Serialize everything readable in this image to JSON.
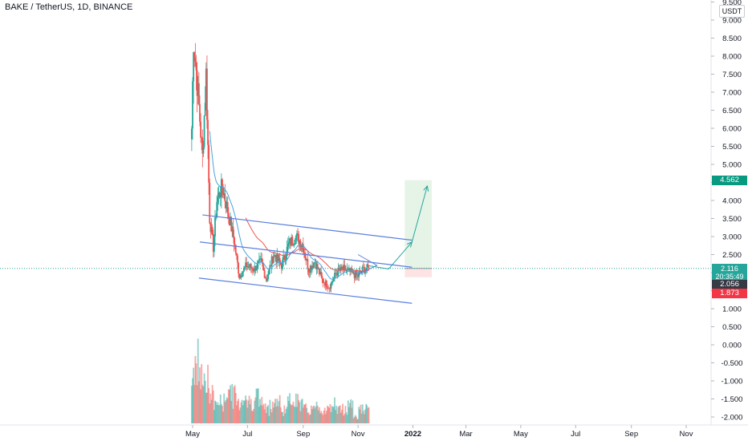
{
  "header": {
    "symbol_title": "BAKE / TetherUS, 1D, BINANCE",
    "currency": "USDT"
  },
  "badges": {
    "target": "4.562",
    "last_price": "2.116",
    "countdown": "20:35:49",
    "prev_close": "2.056",
    "stop": "1.873"
  },
  "colors": {
    "up": "#26a69a",
    "down": "#ef5350",
    "trendline": "#5b7fe0",
    "ema_fast": "#4aa3df",
    "ema_slow": "#ef5350",
    "target_zone": "#e6f4e8",
    "stop_zone": "#fde3e3",
    "last_price_line": "#26a69a"
  },
  "chart_data": {
    "type": "candlestick",
    "y_axis": {
      "ticks": [
        "9.500",
        "9.000",
        "8.500",
        "8.000",
        "7.500",
        "7.000",
        "6.500",
        "6.000",
        "5.500",
        "5.000",
        "4.500",
        "4.000",
        "3.500",
        "3.000",
        "2.500",
        "2.000",
        "1.500",
        "1.000",
        "0.500",
        "0.000",
        "-0.500",
        "-1.000",
        "-1.500",
        "-2.000"
      ],
      "range": [
        -2.2,
        9.6
      ]
    },
    "x_axis": {
      "ticks": [
        "May",
        "Jul",
        "Sep",
        "Nov",
        "2022",
        "Mar",
        "May",
        "Jul",
        "Sep",
        "Nov"
      ],
      "range": [
        "2021-04-23",
        "2022-12-10"
      ]
    },
    "price_series": [
      {
        "date": "2021-04-30",
        "close": 6.0
      },
      {
        "date": "2021-05-02",
        "close": 8.5
      },
      {
        "date": "2021-05-05",
        "close": 7.6
      },
      {
        "date": "2021-05-08",
        "close": 6.6
      },
      {
        "date": "2021-05-12",
        "close": 5.2
      },
      {
        "date": "2021-05-16",
        "close": 7.5
      },
      {
        "date": "2021-05-20",
        "close": 3.5
      },
      {
        "date": "2021-05-24",
        "close": 2.7
      },
      {
        "date": "2021-05-28",
        "close": 4.0
      },
      {
        "date": "2021-06-03",
        "close": 4.4
      },
      {
        "date": "2021-06-10",
        "close": 3.6
      },
      {
        "date": "2021-06-16",
        "close": 2.9
      },
      {
        "date": "2021-06-22",
        "close": 1.9
      },
      {
        "date": "2021-06-30",
        "close": 2.2
      },
      {
        "date": "2021-07-08",
        "close": 2.1
      },
      {
        "date": "2021-07-16",
        "close": 2.3
      },
      {
        "date": "2021-07-22",
        "close": 1.8
      },
      {
        "date": "2021-07-30",
        "close": 2.5
      },
      {
        "date": "2021-08-08",
        "close": 2.2
      },
      {
        "date": "2021-08-16",
        "close": 2.8
      },
      {
        "date": "2021-08-24",
        "close": 3.0
      },
      {
        "date": "2021-08-31",
        "close": 2.8
      },
      {
        "date": "2021-09-07",
        "close": 2.1
      },
      {
        "date": "2021-09-14",
        "close": 2.3
      },
      {
        "date": "2021-09-22",
        "close": 1.8
      },
      {
        "date": "2021-09-30",
        "close": 1.6
      },
      {
        "date": "2021-10-08",
        "close": 2.0
      },
      {
        "date": "2021-10-16",
        "close": 2.1
      },
      {
        "date": "2021-10-24",
        "close": 2.0
      },
      {
        "date": "2021-11-01",
        "close": 1.9
      },
      {
        "date": "2021-11-07",
        "close": 2.1
      },
      {
        "date": "2021-11-13",
        "close": 2.116
      }
    ],
    "volume_series": [
      8,
      9,
      6,
      4,
      3,
      3,
      5,
      4,
      3,
      4,
      3,
      4,
      3,
      2,
      3,
      3,
      2,
      3,
      4,
      3,
      2,
      2,
      3,
      2,
      2,
      3,
      2,
      2,
      3,
      1,
      2,
      2
    ],
    "trendlines": [
      {
        "from": {
          "date": "2021-05-12",
          "value": 3.6
        },
        "to": {
          "date": "2021-12-31",
          "value": 2.9
        }
      },
      {
        "from": {
          "date": "2021-05-09",
          "value": 2.85
        },
        "to": {
          "date": "2021-12-31",
          "value": 2.15
        }
      },
      {
        "from": {
          "date": "2021-05-08",
          "value": 1.85
        },
        "to": {
          "date": "2021-12-31",
          "value": 1.15
        }
      }
    ],
    "projection_arrow": [
      {
        "date": "2021-11-11",
        "value": 2.2
      },
      {
        "date": "2021-12-05",
        "value": 2.1
      },
      {
        "date": "2021-12-31",
        "value": 2.85
      },
      {
        "date": "2022-01-17",
        "value": 4.4
      }
    ],
    "position": {
      "entry": 2.116,
      "target": 4.562,
      "stop": 1.873,
      "start": "2021-12-23",
      "end": "2022-01-22"
    }
  }
}
